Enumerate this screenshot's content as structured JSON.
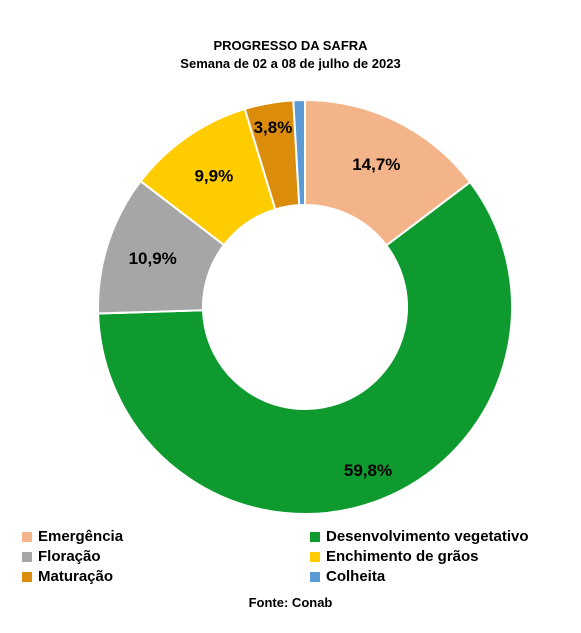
{
  "chart_data": {
    "type": "pie",
    "style": "donut",
    "title": "PROGRESSO DA SAFRA",
    "subtitle": "Semana de 02 a 08 de julho de 2023",
    "source": "Fonte: Conab",
    "legend_position": "bottom",
    "slices": [
      {
        "name": "Emergência",
        "value": 14.7,
        "label": "14,7%",
        "color": "#F4B48A"
      },
      {
        "name": "Desenvolvimento vegetativo",
        "value": 59.8,
        "label": "59,8%",
        "color": "#0E9A2E"
      },
      {
        "name": "Floração",
        "value": 10.9,
        "label": "10,9%",
        "color": "#A6A6A6"
      },
      {
        "name": "Enchimento de grãos",
        "value": 9.9,
        "label": "9,9%",
        "color": "#FFCC00"
      },
      {
        "name": "Maturação",
        "value": 3.8,
        "label": "3,8%",
        "color": "#DC8C0B"
      },
      {
        "name": "Colheita",
        "value": 0.9,
        "label": "",
        "color": "#5B9BD5"
      }
    ]
  }
}
